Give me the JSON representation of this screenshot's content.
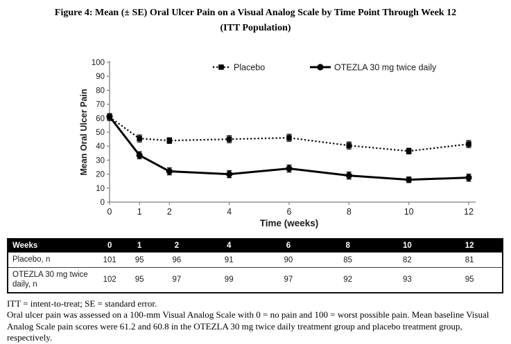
{
  "title": {
    "line1": "Figure 4: Mean (± SE) Oral Ulcer Pain on a Visual Analog Scale by Time Point Through Week 12",
    "line2": "(ITT Population)"
  },
  "colors": {
    "series": "#000000",
    "axis": "#7f7f7f",
    "text": "#1a1a1a",
    "table_header_bg": "#000000",
    "table_header_text": "#ffffff"
  },
  "chart_data": {
    "type": "line",
    "title": "",
    "xlabel": "Time (weeks)",
    "ylabel": "Mean Oral Ulcer Pain",
    "x": [
      0,
      1,
      2,
      4,
      6,
      8,
      10,
      12
    ],
    "xlim": [
      0,
      12
    ],
    "ylim": [
      0,
      100
    ],
    "ytick_step": 10,
    "grid": false,
    "legend_position": "top-inside",
    "series": [
      {
        "name": "Placebo",
        "line_style": "dotted",
        "marker": "square",
        "values": [
          60.8,
          45.5,
          44,
          45,
          46,
          40.5,
          36.5,
          41.5
        ],
        "se": [
          2.5,
          2.5,
          2,
          2.5,
          2.5,
          2.5,
          2,
          2.5
        ]
      },
      {
        "name": "OTEZLA 30 mg twice daily",
        "line_style": "solid",
        "marker": "circle",
        "values": [
          61.2,
          33.5,
          22,
          20,
          24,
          19,
          16,
          17.5
        ],
        "se": [
          2,
          2.5,
          2.5,
          2.5,
          2.5,
          2.5,
          2,
          2.5
        ]
      }
    ]
  },
  "table": {
    "header": [
      "Weeks",
      "0",
      "1",
      "2",
      "4",
      "6",
      "8",
      "10",
      "12"
    ],
    "rows": [
      {
        "label": "Placebo, n",
        "values": [
          "101",
          "95",
          "96",
          "91",
          "90",
          "85",
          "82",
          "81"
        ]
      },
      {
        "label": "OTEZLA 30 mg twice daily, n",
        "values": [
          "102",
          "95",
          "97",
          "99",
          "97",
          "92",
          "93",
          "95"
        ]
      }
    ]
  },
  "footnotes": {
    "line1": "ITT = intent-to-treat; SE = standard error.",
    "line2": "Oral ulcer pain was assessed on a 100-mm Visual Analog Scale with 0 = no pain and 100 = worst possible pain. Mean baseline Visual Analog Scale pain scores were 61.2 and 60.8 in the OTEZLA 30 mg twice daily treatment group and placebo treatment group, respectively."
  }
}
